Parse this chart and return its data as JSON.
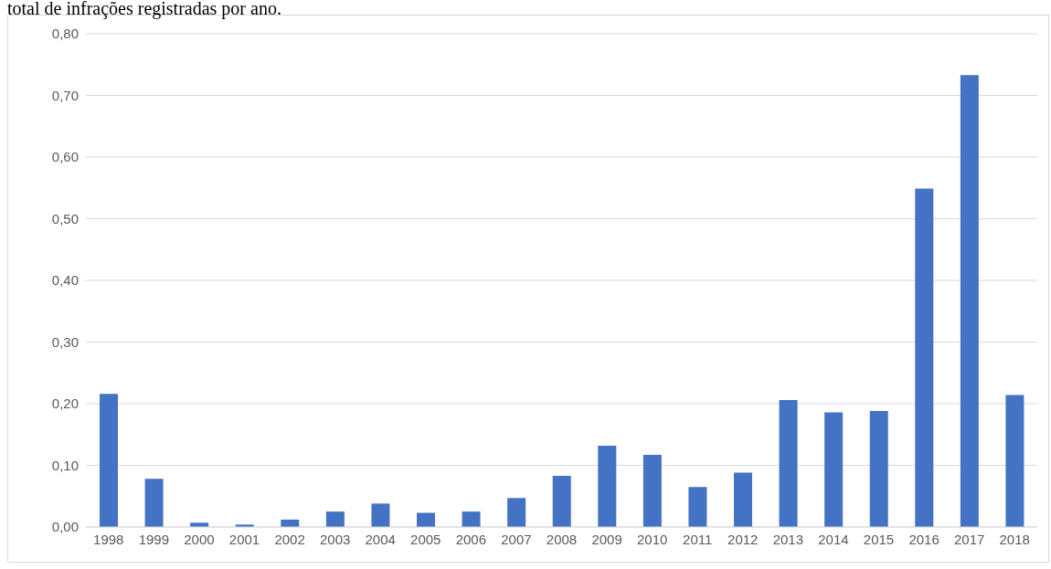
{
  "chart_data": {
    "type": "bar",
    "title": "total de infrações registradas por ano.",
    "categories": [
      "1998",
      "1999",
      "2000",
      "2001",
      "2002",
      "2003",
      "2004",
      "2005",
      "2006",
      "2007",
      "2008",
      "2009",
      "2010",
      "2011",
      "2012",
      "2013",
      "2014",
      "2015",
      "2016",
      "2017",
      "2018"
    ],
    "values": [
      0.216,
      0.078,
      0.007,
      0.004,
      0.012,
      0.025,
      0.038,
      0.023,
      0.025,
      0.047,
      0.083,
      0.132,
      0.117,
      0.065,
      0.088,
      0.206,
      0.186,
      0.188,
      0.549,
      0.733,
      0.214
    ],
    "color": "#4472c4",
    "ylim": [
      0,
      0.8
    ],
    "yticks": [
      {
        "value": 0,
        "label": "0,00"
      },
      {
        "value": 0.1,
        "label": "0,10"
      },
      {
        "value": 0.2,
        "label": "0,20"
      },
      {
        "value": 0.3,
        "label": "0,30"
      },
      {
        "value": 0.4,
        "label": "0,40"
      },
      {
        "value": 0.5,
        "label": "0,50"
      },
      {
        "value": 0.6,
        "label": "0,60"
      },
      {
        "value": 0.7,
        "label": "0,70"
      },
      {
        "value": 0.8,
        "label": "0,80"
      }
    ],
    "grid": "y",
    "legend": false
  }
}
